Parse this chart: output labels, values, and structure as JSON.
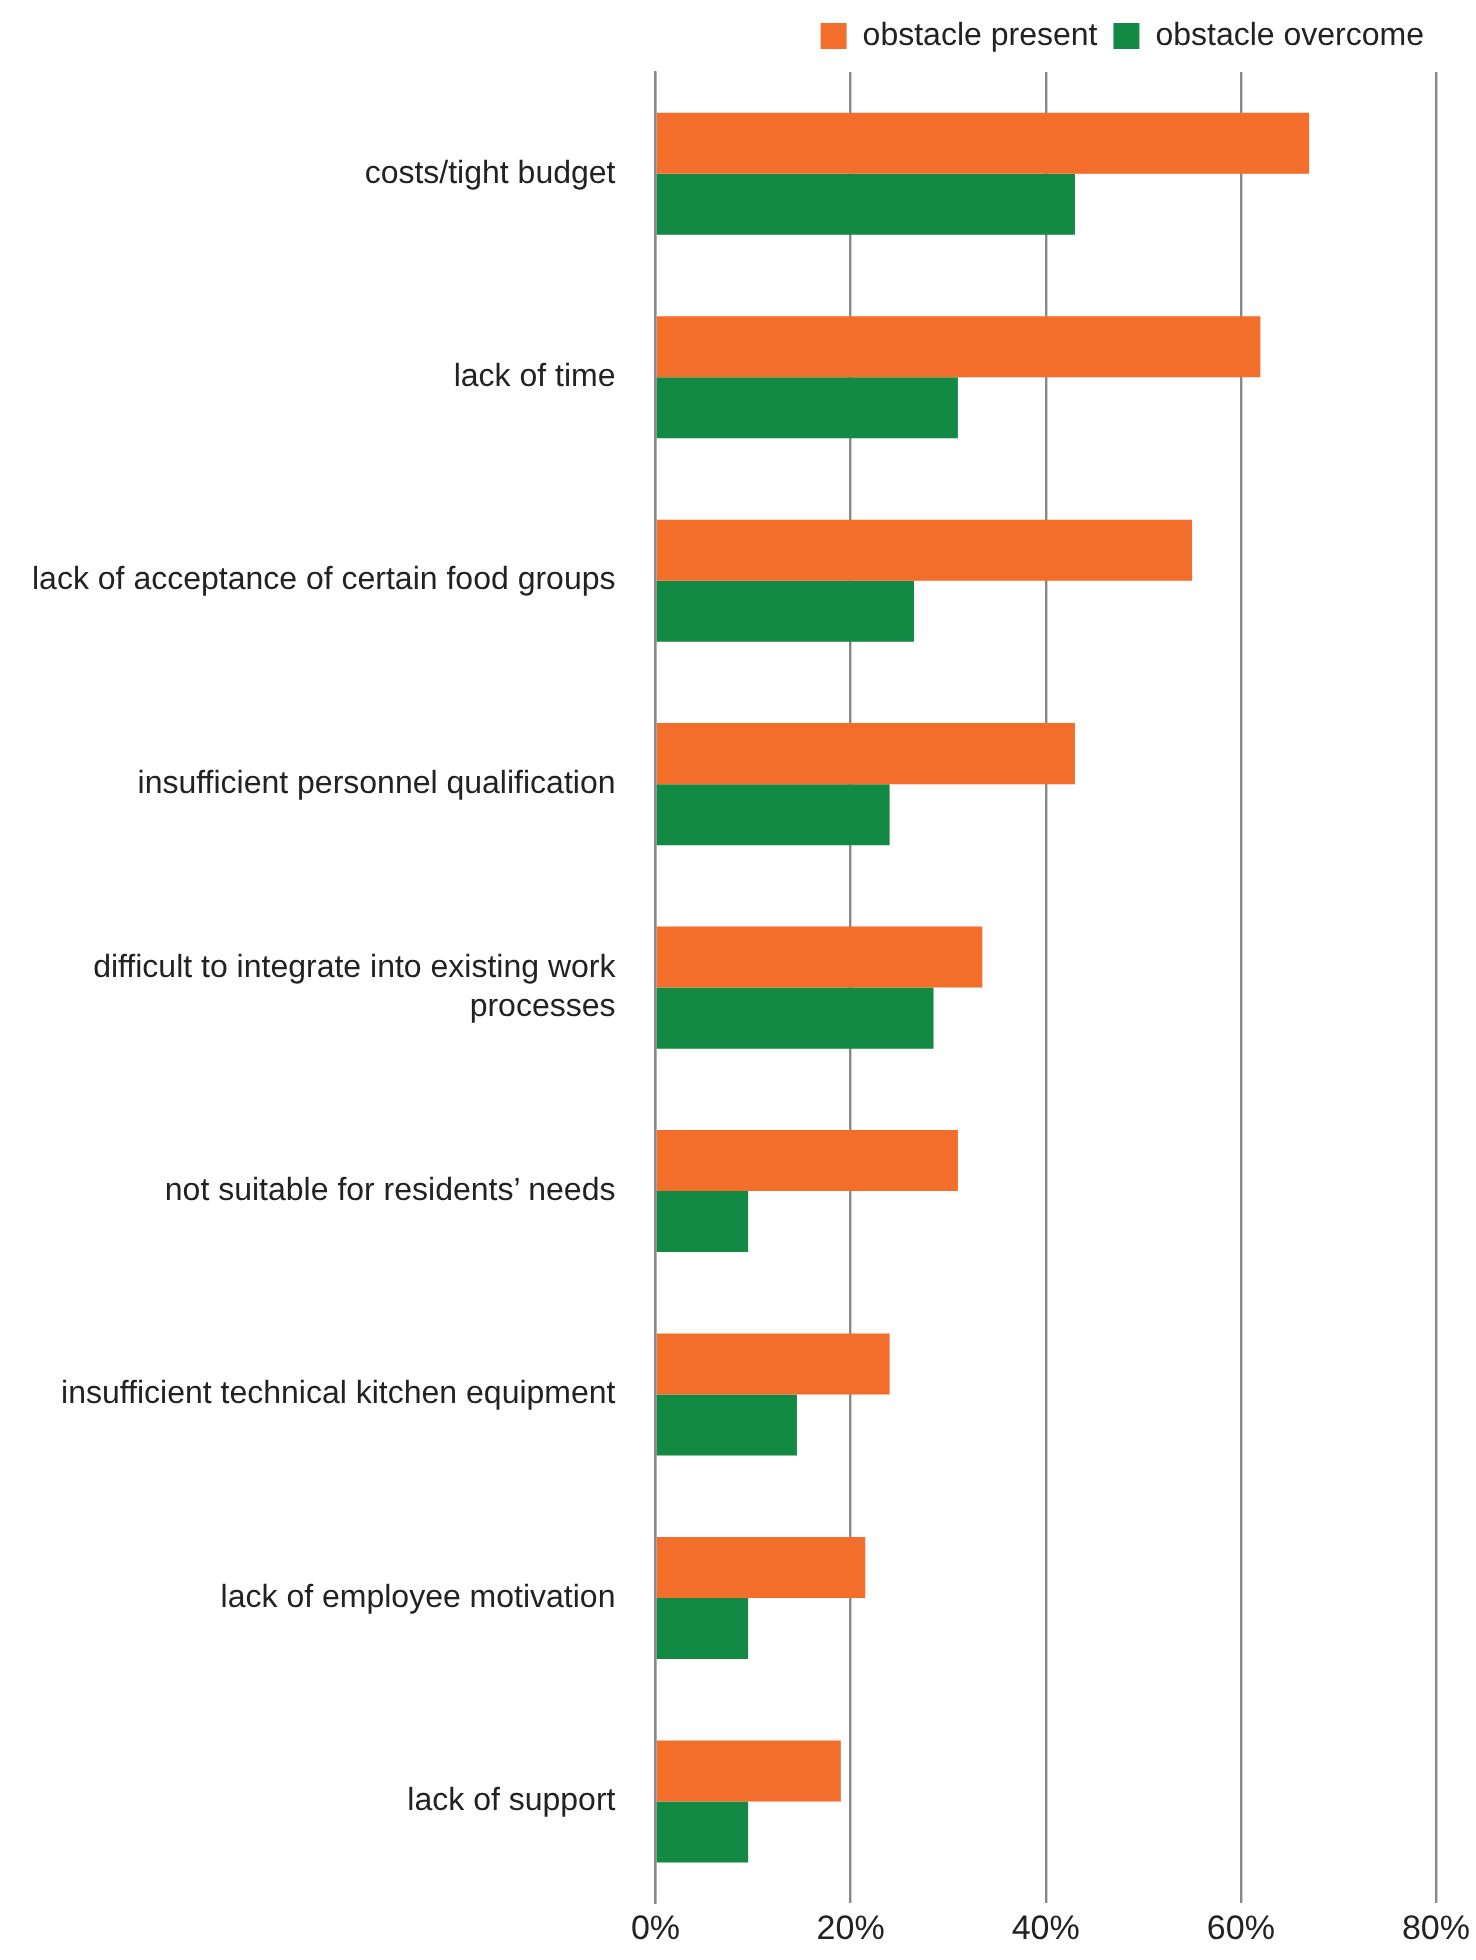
{
  "chart_data": {
    "type": "bar",
    "orientation": "horizontal",
    "categories": [
      "costs/tight budget",
      "lack of time",
      "lack of acceptance of certain food groups",
      "insufficient personnel qualification",
      "difficult to integrate into existing work processes",
      "not suitable for residents’ needs",
      "insufficient technical kitchen equipment",
      "lack of employee motivation",
      "lack of support"
    ],
    "series": [
      {
        "name": "obstacle present",
        "color": "#f26e2a",
        "values": [
          67,
          62,
          55,
          43,
          33.5,
          31,
          24,
          21.5,
          19
        ]
      },
      {
        "name": "obstacle overcome",
        "color": "#138a43",
        "values": [
          43,
          31,
          26.5,
          24,
          28.5,
          9.5,
          14.5,
          9.5,
          9.5
        ]
      }
    ],
    "xlim": [
      0,
      80
    ],
    "xticks": [
      {
        "value": 0,
        "label": "0%"
      },
      {
        "value": 20,
        "label": "20%"
      },
      {
        "value": 40,
        "label": "40%"
      },
      {
        "value": 60,
        "label": "60%"
      },
      {
        "value": 80,
        "label": "80%"
      }
    ],
    "grid": "x",
    "legend": "top"
  }
}
